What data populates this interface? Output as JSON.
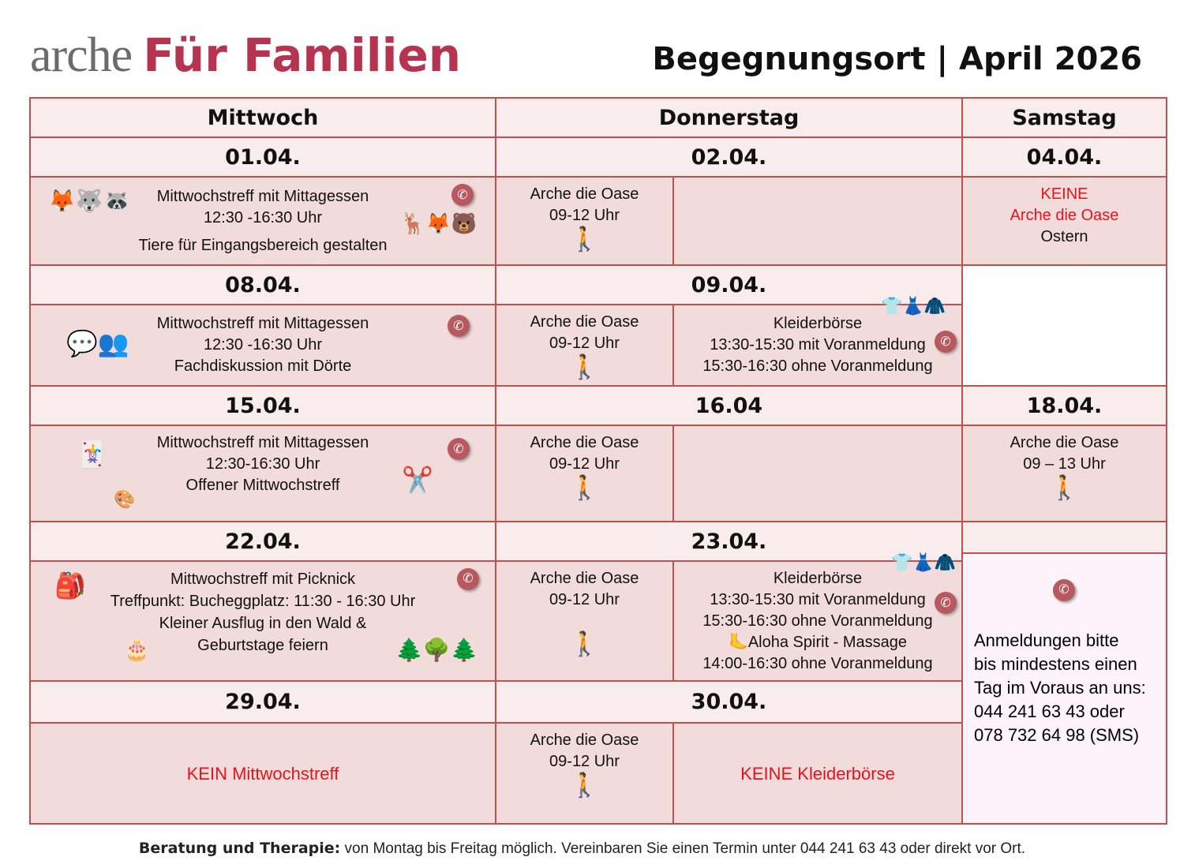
{
  "header": {
    "logo_part1": "arche",
    "logo_part2": "Für Familien",
    "title": "Begegnungsort | April 2026"
  },
  "days": [
    "Mittwoch",
    "Donnerstag",
    "Samstag"
  ],
  "dates": [
    "01.04.",
    "02.04.",
    "04.04.",
    "08.04.",
    "09.04.",
    "15.04.",
    "16.04",
    "18.04.",
    "22.04.",
    "23.04.",
    "29.04.",
    "30.04."
  ],
  "oase": {
    "title": "Arche die Oase",
    "time": "09-12 Uhr",
    "sat_time": "09 – 13 Uhr"
  },
  "wed": {
    "w1": [
      "Mittwochstreff mit Mittagessen",
      "12:30 -16:30 Uhr",
      "Tiere für Eingangsbereich gestalten"
    ],
    "w2": [
      "Mittwochstreff mit Mittagessen",
      "12:30 -16:30 Uhr",
      "Fachdiskussion mit Dörte"
    ],
    "w3": [
      "Mittwochstreff mit Mittagessen",
      "12:30-16:30 Uhr",
      "Offener Mittwochstreff"
    ],
    "w4": [
      "Mittwochstreff mit Picknick",
      "Treffpunkt: Bucheggplatz: 11:30 - 16:30 Uhr",
      "Kleiner Ausflug in den Wald &",
      "Geburtstage feiern"
    ],
    "w5": "KEIN Mittwochstreff"
  },
  "kleider": {
    "title": "Kleiderbörse",
    "l1": "13:30-15:30 mit Voranmeldung",
    "l2": "15:30-16:30 ohne Voranmeldung",
    "aloha": "Aloha Spirit - Massage",
    "aloha_time": "14:00-16:30 ohne Voranmeldung",
    "none": "KEINE Kleiderbörse"
  },
  "sat1": {
    "l1": "KEINE",
    "l2": "Arche die Oase",
    "l3": "Ostern"
  },
  "info": [
    "Anmeldungen bitte",
    "bis mindestens einen",
    "Tag im Voraus an uns:",
    "044 241 63 43 oder",
    "078 732 64 98 (SMS)"
  ],
  "footer": {
    "bold": "Beratung und Therapie:",
    "text": " von Montag bis Freitag möglich. Vereinbaren Sie einen Termin unter 044 241 63 43 oder direkt vor Ort."
  }
}
